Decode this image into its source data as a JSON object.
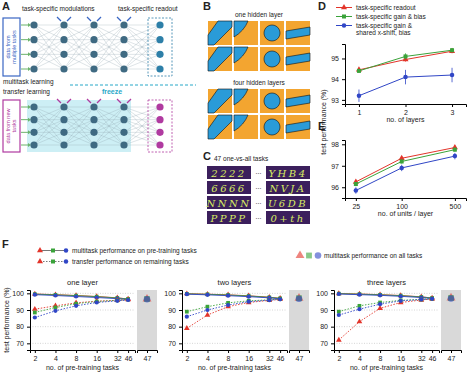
{
  "panel_labels": [
    "A",
    "B",
    "C",
    "D",
    "E",
    "F"
  ],
  "diagram": {
    "A": {
      "top_left": "task-specific modulations",
      "top_right": "task-specific readout",
      "input_top": "data from multiple tasks",
      "multitask": "multitask learning",
      "transfer": "transfer learning",
      "freeze": "freeze",
      "input_bottom": "data from new tasks"
    },
    "B": {
      "labels": [
        "one hidden layer",
        "four hidden layers"
      ]
    },
    "C": {
      "title": "47 one-vs-all tasks",
      "rows": [
        [
          "2222",
          "YHB4"
        ],
        [
          "6666",
          "NVJA"
        ],
        [
          "NNNN",
          "U6DB"
        ],
        [
          "PPPP",
          "0+th"
        ]
      ],
      "ellipsis": "..."
    }
  },
  "f_legend": [
    "multitask performance on pre-training tasks",
    "transfer performance on remaining tasks",
    "multitask performance on all tasks"
  ],
  "chart_data": [
    {
      "type": "line",
      "x": [
        1,
        2,
        3
      ],
      "xlim": [
        0.7,
        3.3
      ],
      "xticks": [
        1,
        2,
        3
      ],
      "ylim": [
        92.8,
        95.7
      ],
      "yticks": [
        93,
        94,
        95
      ],
      "x_label": "no. of layers",
      "y_label": "test performance (%)",
      "series": [
        {
          "name": "task-specific readout",
          "color": "#e3342a",
          "marker": "triangle",
          "values": [
            94.45,
            94.95,
            95.35
          ],
          "errors": [
            0.1,
            0.1,
            0.1
          ]
        },
        {
          "name": "task-specific gain & bias",
          "color": "#3aa33a",
          "marker": "square",
          "values": [
            94.4,
            95.1,
            95.4
          ],
          "errors": [
            0.1,
            0.15,
            0.1
          ]
        },
        {
          "name": "task-specific gain & shared x-shift, bias",
          "color": "#3046c6",
          "marker": "circle",
          "values": [
            93.2,
            94.1,
            94.2
          ],
          "errors": [
            0.3,
            0.35,
            0.35
          ]
        }
      ]
    },
    {
      "type": "line",
      "log": "x",
      "x": [
        25,
        100,
        500
      ],
      "xlim": [
        18,
        700
      ],
      "xticks": [
        25,
        100,
        500
      ],
      "ylim": [
        95.5,
        98.2
      ],
      "yticks": [
        96,
        97,
        98
      ],
      "x_label": "no. of units / layer",
      "series": [
        {
          "color": "#e3342a",
          "marker": "triangle",
          "values": [
            96.25,
            97.35,
            97.85
          ],
          "errors": [
            0.1,
            0.1,
            0.1
          ]
        },
        {
          "color": "#3aa33a",
          "marker": "square",
          "values": [
            96.15,
            97.2,
            97.75
          ],
          "errors": [
            0.1,
            0.1,
            0.1
          ]
        },
        {
          "color": "#3046c6",
          "marker": "circle",
          "values": [
            95.85,
            96.9,
            97.45
          ],
          "errors": [
            0.15,
            0.15,
            0.15
          ]
        }
      ]
    },
    {
      "type": "line",
      "title": "one layer",
      "log": "x",
      "grid": true,
      "x": [
        2,
        4,
        8,
        16,
        32,
        46
      ],
      "xlim": [
        1.7,
        58
      ],
      "xticks": [
        2,
        4,
        8,
        16,
        32,
        46
      ],
      "ylim": [
        66,
        102
      ],
      "yticks": [
        70,
        80,
        90,
        100
      ],
      "x_label": "no. of pre-training tasks",
      "y_label": "test performance (%)",
      "series": [
        {
          "color": "#e3342a",
          "marker": "triangle",
          "line_style": "solid",
          "values": [
            99.6,
            99.2,
            98.7,
            98.1,
            97.3,
            96.6
          ]
        },
        {
          "color": "#3aa33a",
          "marker": "square",
          "line_style": "solid",
          "values": [
            99.5,
            99.1,
            98.6,
            98.0,
            97.2,
            96.6
          ]
        },
        {
          "color": "#3046c6",
          "marker": "circle",
          "line_style": "solid",
          "values": [
            99.2,
            98.7,
            98.1,
            97.5,
            96.8,
            96.3
          ]
        },
        {
          "color": "#e3342a",
          "marker": "triangle",
          "line_style": "dotted",
          "values": [
            90.5,
            92.5,
            94.3,
            95.3,
            95.8,
            96.2
          ]
        },
        {
          "color": "#3aa33a",
          "marker": "square",
          "line_style": "dotted",
          "values": [
            88.5,
            91.5,
            93.8,
            95.1,
            95.8,
            96.3
          ]
        },
        {
          "color": "#3046c6",
          "marker": "circle",
          "line_style": "dotted",
          "values": [
            85.5,
            89.5,
            92.5,
            94.5,
            95.5,
            96.0
          ]
        }
      ],
      "all_tasks": {
        "x": 47,
        "values": [
          96.6,
          96.6,
          96.4
        ]
      }
    },
    {
      "type": "line",
      "title": "two layers",
      "log": "x",
      "grid": true,
      "x": [
        2,
        4,
        8,
        16,
        32,
        46
      ],
      "xlim": [
        1.7,
        58
      ],
      "xticks": [
        2,
        4,
        8,
        16,
        32,
        46
      ],
      "ylim": [
        66,
        102
      ],
      "yticks": [
        70,
        80,
        90,
        100
      ],
      "x_label": "no. of pre-training tasks",
      "series": [
        {
          "color": "#e3342a",
          "marker": "triangle",
          "line_style": "solid",
          "values": [
            99.8,
            99.5,
            99.1,
            98.5,
            97.7,
            97.0
          ]
        },
        {
          "color": "#3aa33a",
          "marker": "square",
          "line_style": "solid",
          "values": [
            99.7,
            99.4,
            99.0,
            98.4,
            97.6,
            97.0
          ]
        },
        {
          "color": "#3046c6",
          "marker": "circle",
          "line_style": "solid",
          "values": [
            99.5,
            99.1,
            98.6,
            98.0,
            97.3,
            96.7
          ]
        },
        {
          "color": "#e3342a",
          "marker": "triangle",
          "line_style": "dotted",
          "values": [
            79,
            87,
            92,
            94.5,
            95.8,
            96.4
          ]
        },
        {
          "color": "#3aa33a",
          "marker": "square",
          "line_style": "dotted",
          "values": [
            89,
            92,
            94.3,
            95.5,
            96.1,
            96.6
          ]
        },
        {
          "color": "#3046c6",
          "marker": "circle",
          "line_style": "dotted",
          "values": [
            86,
            90,
            93,
            95,
            95.9,
            96.4
          ]
        }
      ],
      "all_tasks": {
        "x": 47,
        "values": [
          97.1,
          97.1,
          96.8
        ]
      }
    },
    {
      "type": "line",
      "title": "three layers",
      "log": "x",
      "grid": true,
      "x": [
        2,
        4,
        8,
        16,
        32,
        46
      ],
      "xlim": [
        1.7,
        58
      ],
      "xticks": [
        2,
        4,
        8,
        16,
        32,
        46
      ],
      "ylim": [
        66,
        102
      ],
      "yticks": [
        70,
        80,
        90,
        100
      ],
      "x_label": "no. of pre-training tasks",
      "series": [
        {
          "color": "#e3342a",
          "marker": "triangle",
          "line_style": "solid",
          "values": [
            99.9,
            99.6,
            99.2,
            98.7,
            97.9,
            97.2
          ]
        },
        {
          "color": "#3aa33a",
          "marker": "square",
          "line_style": "solid",
          "values": [
            99.8,
            99.5,
            99.1,
            98.6,
            97.8,
            97.2
          ]
        },
        {
          "color": "#3046c6",
          "marker": "circle",
          "line_style": "solid",
          "values": [
            99.6,
            99.2,
            98.8,
            98.2,
            97.5,
            96.9
          ]
        },
        {
          "color": "#e3342a",
          "marker": "triangle",
          "line_style": "dotted",
          "values": [
            72,
            83,
            91,
            94.5,
            96,
            96.6
          ]
        },
        {
          "color": "#3aa33a",
          "marker": "square",
          "line_style": "dotted",
          "values": [
            89,
            92.5,
            94.5,
            95.8,
            96.3,
            96.8
          ]
        },
        {
          "color": "#3046c6",
          "marker": "circle",
          "line_style": "dotted",
          "values": [
            87,
            90.5,
            93.5,
            95.5,
            96.3,
            96.7
          ]
        }
      ],
      "all_tasks": {
        "x": 47,
        "values": [
          97.3,
          97.2,
          96.9
        ]
      }
    }
  ]
}
